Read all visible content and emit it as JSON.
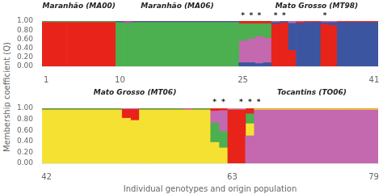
{
  "chart_data": [
    {
      "type": "bar",
      "stacked": true,
      "grid": false,
      "ylabel": "Membership coefficient (Q)",
      "x": [
        1,
        2,
        3,
        4,
        5,
        6,
        7,
        8,
        9,
        10,
        11,
        12,
        13,
        14,
        15,
        16,
        17,
        18,
        19,
        20,
        21,
        22,
        23,
        24,
        25,
        26,
        27,
        28,
        29,
        30,
        31,
        32,
        33,
        34,
        35,
        36,
        37,
        38,
        39,
        40,
        41
      ],
      "xlim": [
        0.5,
        41.5
      ],
      "xticks": [
        1,
        10,
        25,
        41
      ],
      "ylim": [
        0,
        1
      ],
      "yticks": [
        {
          "value": 0,
          "label": "0.00"
        },
        {
          "value": 0.2,
          "label": "0.20"
        },
        {
          "value": 0.4,
          "label": "0.40"
        },
        {
          "value": 0.6,
          "label": "0.60"
        },
        {
          "value": 0.8,
          "label": "0.80"
        },
        {
          "value": 1,
          "label": "1.00"
        }
      ],
      "series": [
        {
          "values": [
            0.97,
            0.97,
            0.97,
            0.97,
            0.97,
            0.97,
            0.97,
            0.97,
            0.97,
            0.97,
            0.95,
            0.97,
            0.97,
            0.97,
            0.97,
            0.97,
            0.97,
            0.97,
            0.97,
            0.97,
            0.97,
            0.97,
            0.97,
            0.97,
            0.08,
            0.08,
            0.06,
            0.08,
            0.93,
            0.96,
            0.35,
            0.95,
            0.97,
            0.97,
            0.93,
            0.9,
            0.97,
            0.97,
            0.97,
            0.97,
            0.97
          ],
          "colors": [
            "#E8231A",
            "#E8231A",
            "#E8231A",
            "#E8231A",
            "#E8231A",
            "#E8231A",
            "#E8231A",
            "#E8231A",
            "#E8231A",
            "#4CAF50",
            "#4CAF50",
            "#4CAF50",
            "#4CAF50",
            "#4CAF50",
            "#4CAF50",
            "#4CAF50",
            "#4CAF50",
            "#4CAF50",
            "#4CAF50",
            "#4CAF50",
            "#4CAF50",
            "#4CAF50",
            "#4CAF50",
            "#4CAF50",
            "#3B55A0",
            "#3B55A0",
            "#3B55A0",
            "#3B55A0",
            "#E8231A",
            "#E8231A",
            "#E8231A",
            "#3B55A0",
            "#3B55A0",
            "#3B55A0",
            "#E8231A",
            "#E8231A",
            "#3B55A0",
            "#3B55A0",
            "#3B55A0",
            "#3B55A0",
            "#3B55A0"
          ]
        },
        {
          "values": [
            0.02,
            0.02,
            0.02,
            0.02,
            0.02,
            0.02,
            0.02,
            0.02,
            0.02,
            0.02,
            0.04,
            0.02,
            0.02,
            0.02,
            0.02,
            0.02,
            0.02,
            0.02,
            0.02,
            0.02,
            0.02,
            0.02,
            0.02,
            0.02,
            0.48,
            0.52,
            0.6,
            0.54,
            0.04,
            0.03,
            0.6,
            0.03,
            0.02,
            0.02,
            0.04,
            0.07,
            0.02,
            0.02,
            0.02,
            0.02,
            0.02
          ],
          "colors": [
            "#4CAF50",
            "#4CAF50",
            "#4CAF50",
            "#4CAF50",
            "#4CAF50",
            "#4CAF50",
            "#4CAF50",
            "#4CAF50",
            "#4CAF50",
            "#3B55A0",
            "#9B59B6",
            "#3B55A0",
            "#3B55A0",
            "#3B55A0",
            "#3B55A0",
            "#3B55A0",
            "#3B55A0",
            "#3B55A0",
            "#3B55A0",
            "#3B55A0",
            "#3B55A0",
            "#3B55A0",
            "#3B55A0",
            "#3B55A0",
            "#C468B0",
            "#C468B0",
            "#C468B0",
            "#C468B0",
            "#3B55A0",
            "#3B55A0",
            "#3B55A0",
            "#E8231A",
            "#E8231A",
            "#E8231A",
            "#3B55A0",
            "#3B55A0",
            "#E8231A",
            "#E8231A",
            "#E8231A",
            "#E8231A",
            "#E8231A"
          ]
        },
        {
          "values": [
            0.01,
            0.01,
            0.01,
            0.01,
            0.01,
            0.01,
            0.01,
            0.01,
            0.01,
            0.01,
            0.01,
            0.01,
            0.01,
            0.01,
            0.01,
            0.01,
            0.01,
            0.01,
            0.01,
            0.01,
            0.01,
            0.01,
            0.01,
            0.01,
            0.38,
            0.34,
            0.28,
            0.32,
            0.03,
            0.01,
            0.05,
            0.02,
            0.01,
            0.01,
            0.03,
            0.03,
            0.01,
            0.01,
            0.01,
            0.01,
            0.01
          ],
          "colors": [
            "#3B55A0",
            "#3B55A0",
            "#3B55A0",
            "#3B55A0",
            "#3B55A0",
            "#3B55A0",
            "#3B55A0",
            "#3B55A0",
            "#3B55A0",
            "#E8231A",
            "#E8231A",
            "#E8231A",
            "#E8231A",
            "#E8231A",
            "#E8231A",
            "#E8231A",
            "#E8231A",
            "#E8231A",
            "#E8231A",
            "#E8231A",
            "#E8231A",
            "#E8231A",
            "#E8231A",
            "#E8231A",
            "#4CAF50",
            "#4CAF50",
            "#4CAF50",
            "#4CAF50",
            "#C468B0",
            "#C468B0",
            "#C468B0",
            "#C468B0",
            "#C468B0",
            "#C468B0",
            "#C468B0",
            "#C468B0",
            "#C468B0",
            "#C468B0",
            "#C468B0",
            "#C468B0",
            "#C468B0"
          ]
        },
        {
          "values": [
            null,
            null,
            null,
            null,
            null,
            null,
            null,
            null,
            null,
            null,
            null,
            null,
            null,
            null,
            null,
            null,
            null,
            null,
            null,
            null,
            null,
            null,
            null,
            null,
            0.06,
            0.06,
            0.06,
            0.06,
            null,
            null,
            null,
            null,
            null,
            null,
            null,
            null,
            null,
            null,
            null,
            null,
            null
          ],
          "colors": [
            null,
            null,
            null,
            null,
            null,
            null,
            null,
            null,
            null,
            null,
            null,
            null,
            null,
            null,
            null,
            null,
            null,
            null,
            null,
            null,
            null,
            null,
            null,
            null,
            "#E8231A",
            "#E8231A",
            "#E8231A",
            "#E8231A",
            null,
            null,
            null,
            null,
            null,
            null,
            null,
            null,
            null,
            null,
            null,
            null,
            null
          ]
        }
      ],
      "annotations": [
        {
          "text": "*",
          "x": 25,
          "y": 1.02
        },
        {
          "text": "*",
          "x": 26,
          "y": 1.02
        },
        {
          "text": "*",
          "x": 27,
          "y": 1.02
        },
        {
          "text": "*",
          "x": 29,
          "y": 1.02
        },
        {
          "text": "*",
          "x": 30,
          "y": 1.02
        },
        {
          "text": "*",
          "x": 35,
          "y": 1.02
        },
        {
          "text": "Maranhão (MA00)",
          "x": 5.0,
          "y": 1.04
        },
        {
          "text": "Maranhão (MA06)",
          "x": 17.0,
          "y": 1.04
        },
        {
          "text": "Mato Grosso (MT98)",
          "x": 34.0,
          "y": 1.04
        }
      ]
    },
    {
      "type": "bar",
      "stacked": true,
      "grid": false,
      "xlabel": "Individual genotypes and origin population",
      "x": [
        42,
        43,
        44,
        45,
        46,
        47,
        48,
        49,
        50,
        51,
        52,
        53,
        54,
        55,
        56,
        57,
        58,
        59,
        60,
        61,
        62,
        63,
        64,
        65,
        66,
        67,
        68,
        69,
        70,
        71,
        72,
        73,
        74,
        75,
        76,
        77,
        78,
        79
      ],
      "xlim": [
        41.5,
        79.5
      ],
      "xticks": [
        42,
        63,
        79
      ],
      "ylim": [
        0,
        1
      ],
      "yticks": [
        {
          "value": 0,
          "label": "0.00"
        },
        {
          "value": 0.2,
          "label": "0.20"
        },
        {
          "value": 0.4,
          "label": "0.40"
        },
        {
          "value": 0.6,
          "label": "0.60"
        },
        {
          "value": 0.8,
          "label": "0.80"
        },
        {
          "value": 1,
          "label": "1.00"
        }
      ],
      "series": [
        {
          "values": [
            0.97,
            0.97,
            0.97,
            0.97,
            0.97,
            0.97,
            0.97,
            0.97,
            0.97,
            0.82,
            0.78,
            0.97,
            0.97,
            0.97,
            0.97,
            0.97,
            0.97,
            0.97,
            0.97,
            0.38,
            0.28,
            0.97,
            0.97,
            0.5,
            0.97,
            0.97,
            0.97,
            0.97,
            0.97,
            0.97,
            0.97,
            0.97,
            0.97,
            0.97,
            0.97,
            0.97,
            0.97,
            0.97
          ],
          "colors": [
            "#F5E132",
            "#F5E132",
            "#F5E132",
            "#F5E132",
            "#F5E132",
            "#F5E132",
            "#F5E132",
            "#F5E132",
            "#F5E132",
            "#F5E132",
            "#F5E132",
            "#F5E132",
            "#F5E132",
            "#F5E132",
            "#F5E132",
            "#F5E132",
            "#F5E132",
            "#F5E132",
            "#F5E132",
            "#F5E132",
            "#F5E132",
            "#E8231A",
            "#E8231A",
            "#C468B0",
            "#C468B0",
            "#C468B0",
            "#C468B0",
            "#C468B0",
            "#C468B0",
            "#C468B0",
            "#C468B0",
            "#C468B0",
            "#C468B0",
            "#C468B0",
            "#C468B0",
            "#C468B0",
            "#C468B0",
            "#C468B0"
          ]
        },
        {
          "values": [
            0.02,
            0.02,
            0.02,
            0.02,
            0.02,
            0.02,
            0.02,
            0.02,
            0.02,
            0.16,
            0.2,
            0.02,
            0.02,
            0.02,
            0.02,
            0.02,
            0.02,
            0.02,
            0.02,
            0.35,
            0.3,
            0.02,
            0.02,
            0.22,
            0.02,
            0.02,
            0.02,
            0.02,
            0.02,
            0.02,
            0.02,
            0.02,
            0.02,
            0.02,
            0.02,
            0.02,
            0.02,
            0.02
          ],
          "colors": [
            "#4CAF50",
            "#4CAF50",
            "#4CAF50",
            "#4CAF50",
            "#4CAF50",
            "#4CAF50",
            "#4CAF50",
            "#4CAF50",
            "#4CAF50",
            "#E8231A",
            "#E8231A",
            "#4CAF50",
            "#4CAF50",
            "#4CAF50",
            "#4CAF50",
            "#4CAF50",
            "#C468B0",
            "#4CAF50",
            "#4CAF50",
            "#4CAF50",
            "#4CAF50",
            "#C468B0",
            "#C468B0",
            "#F5E132",
            "#F5E132",
            "#F5E132",
            "#F5E132",
            "#F5E132",
            "#F5E132",
            "#F5E132",
            "#F5E132",
            "#F5E132",
            "#F5E132",
            "#F5E132",
            "#F5E132",
            "#F5E132",
            "#F5E132",
            "#F5E132"
          ]
        },
        {
          "values": [
            0.01,
            0.01,
            0.01,
            0.01,
            0.01,
            0.01,
            0.01,
            0.01,
            0.01,
            0.02,
            0.02,
            0.01,
            0.01,
            0.01,
            0.01,
            0.01,
            0.01,
            0.01,
            0.01,
            0.22,
            0.38,
            0.01,
            0.01,
            0.18,
            0.01,
            0.01,
            0.01,
            0.01,
            0.01,
            0.01,
            0.01,
            0.01,
            0.01,
            0.01,
            0.01,
            0.01,
            0.01,
            0.01
          ],
          "colors": [
            "#E8231A",
            "#E8231A",
            "#E8231A",
            "#E8231A",
            "#E8231A",
            "#E8231A",
            "#E8231A",
            "#E8231A",
            "#E8231A",
            "#C468B0",
            "#C468B0",
            "#E8231A",
            "#E8231A",
            "#E8231A",
            "#E8231A",
            "#E8231A",
            "#E8231A",
            "#E8231A",
            "#E8231A",
            "#C468B0",
            "#C468B0",
            "#F5E132",
            "#F5E132",
            "#4CAF50",
            "#E8231A",
            "#E8231A",
            "#E8231A",
            "#E8231A",
            "#E8231A",
            "#E8231A",
            "#E8231A",
            "#E8231A",
            "#E8231A",
            "#E8231A",
            "#E8231A",
            "#E8231A",
            "#E8231A",
            "#E8231A"
          ]
        },
        {
          "values": [
            null,
            null,
            null,
            null,
            null,
            null,
            null,
            null,
            null,
            null,
            null,
            null,
            null,
            null,
            null,
            null,
            null,
            null,
            null,
            0.05,
            0.04,
            null,
            null,
            0.1,
            null,
            null,
            null,
            null,
            null,
            null,
            null,
            null,
            null,
            null,
            null,
            null,
            null,
            null
          ],
          "colors": [
            null,
            null,
            null,
            null,
            null,
            null,
            null,
            null,
            null,
            null,
            null,
            null,
            null,
            null,
            null,
            null,
            null,
            null,
            null,
            "#E8231A",
            "#E8231A",
            null,
            null,
            "#E8231A",
            null,
            null,
            null,
            null,
            null,
            null,
            null,
            null,
            null,
            null,
            null,
            null,
            null,
            null
          ]
        }
      ],
      "annotations": [
        {
          "text": "*",
          "x": 61,
          "y": 1.02
        },
        {
          "text": "*",
          "x": 62,
          "y": 1.02
        },
        {
          "text": "*",
          "x": 64,
          "y": 1.02
        },
        {
          "text": "*",
          "x": 65,
          "y": 1.02
        },
        {
          "text": "*",
          "x": 66,
          "y": 1.02
        },
        {
          "text": "Mato Grosso (MT06)",
          "x": 52.0,
          "y": 1.04
        },
        {
          "text": "Tocantins (TO06)",
          "x": 72.0,
          "y": 1.04
        }
      ]
    }
  ]
}
